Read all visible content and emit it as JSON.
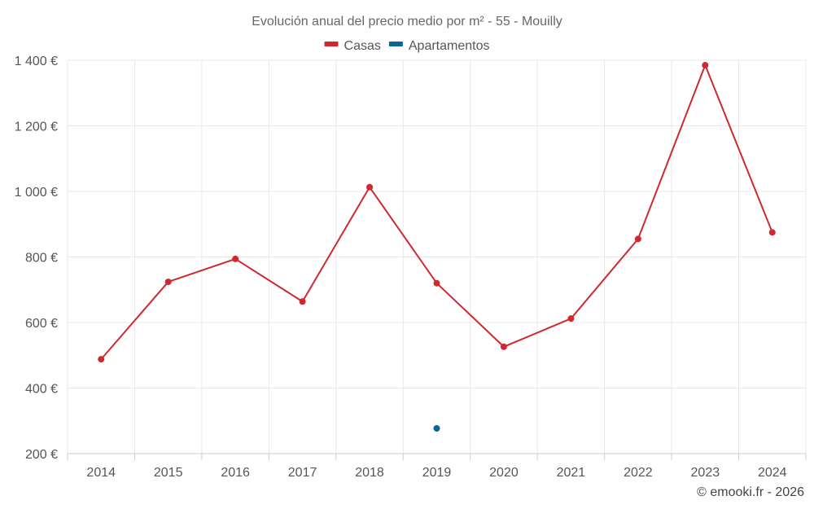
{
  "chart_data": {
    "type": "line",
    "title": "Evolución anual del precio medio por m² - 55 - Mouilly",
    "categories": [
      "2014",
      "2015",
      "2016",
      "2017",
      "2018",
      "2019",
      "2020",
      "2021",
      "2022",
      "2023",
      "2024"
    ],
    "series": [
      {
        "name": "Casas",
        "color": "#d0282e",
        "values": [
          488,
          724,
          794,
          664,
          1013,
          720,
          526,
          612,
          855,
          1385,
          875
        ]
      },
      {
        "name": "Apartamentos",
        "color": "#0a6699",
        "values": [
          null,
          null,
          null,
          null,
          null,
          277,
          null,
          null,
          null,
          null,
          null
        ]
      }
    ],
    "y_ticks": [
      200,
      400,
      600,
      800,
      1000,
      1200,
      1400
    ],
    "y_tick_labels": [
      "200 €",
      "400 €",
      "600 €",
      "800 €",
      "1 000 €",
      "1 200 €",
      "1 400 €"
    ],
    "ylim": [
      200,
      1400
    ],
    "xlabel": "",
    "ylabel": "",
    "grid": true,
    "legend_position": "top-center"
  },
  "credit": "© emooki.fr - 2026"
}
